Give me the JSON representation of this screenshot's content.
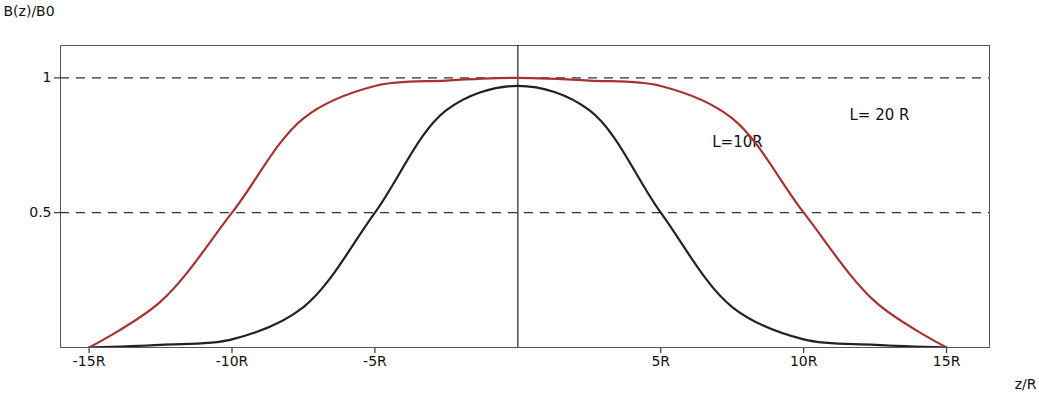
{
  "chart_data": {
    "type": "line",
    "x_label": "z/R",
    "y_label": "B(z)/B0",
    "x": [
      -15,
      -12.5,
      -10,
      -7.5,
      -5,
      -2.5,
      0,
      2.5,
      5,
      7.5,
      10,
      12.5,
      15
    ],
    "series": [
      {
        "name": "L=10R",
        "color": "#222222",
        "line_style": "solid",
        "label_at": [
          6.8,
          0.76
        ],
        "values": [
          0.0,
          0.01,
          0.03,
          0.15,
          0.5,
          0.88,
          0.97,
          0.88,
          0.5,
          0.15,
          0.03,
          0.01,
          0.0
        ]
      },
      {
        "name": "L= 20 R",
        "color": "#a83232",
        "line_style": "solid",
        "label_at": [
          11.6,
          0.86
        ],
        "values": [
          0.0,
          0.17,
          0.5,
          0.85,
          0.97,
          0.99,
          1.0,
          0.99,
          0.97,
          0.85,
          0.5,
          0.17,
          0.0
        ]
      }
    ],
    "reference_lines": [
      {
        "y": 1,
        "line_style": "dashed"
      },
      {
        "y": 0.5,
        "line_style": "dashed"
      }
    ],
    "xlim": [
      -16,
      16.5
    ],
    "ylim": [
      0,
      1.12
    ],
    "xticks": [
      {
        "value": -15,
        "label": "-15R"
      },
      {
        "value": -10,
        "label": "-10R"
      },
      {
        "value": -5,
        "label": "-5R"
      },
      {
        "value": 5,
        "label": "5R"
      },
      {
        "value": 10,
        "label": "10R"
      },
      {
        "value": 15,
        "label": "15R"
      }
    ],
    "yticks": [
      0.5,
      1
    ],
    "grid": false
  }
}
